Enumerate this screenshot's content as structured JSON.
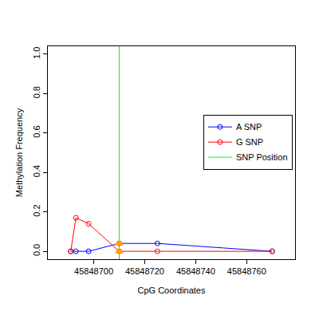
{
  "chart_data": {
    "type": "line",
    "x_label": "CpG Coordinates",
    "y_label": "Methylation Frequency",
    "x": [
      45848691,
      45848693,
      45848698,
      45848710,
      45848725,
      45848770
    ],
    "series": [
      {
        "name": "A SNP",
        "color": "#0000ff",
        "marker": "circle-open",
        "values": [
          0,
          0,
          0,
          0.04,
          0.04,
          0
        ]
      },
      {
        "name": "G SNP",
        "color": "#ff0000",
        "marker": "circle-open",
        "values": [
          0,
          0.17,
          0.14,
          0,
          0,
          0
        ]
      }
    ],
    "snp": {
      "name": "SNP Position",
      "x": 45848710,
      "color": "#00ff00",
      "marker": "triangle-up",
      "marker_color": "#ffa500"
    },
    "xlim": [
      45848682,
      45848779
    ],
    "xticks": [
      45848700,
      45848720,
      45848740,
      45848760
    ],
    "ylim": [
      -0.04,
      1.04
    ],
    "yticks": [
      {
        "value": 0,
        "label": "0.0"
      },
      {
        "value": 0.2,
        "label": "0.2"
      },
      {
        "value": 0.4,
        "label": "0.4"
      },
      {
        "value": 0.6,
        "label": "0.6"
      },
      {
        "value": 0.8,
        "label": "0.8"
      },
      {
        "value": 1,
        "label": "1.0"
      }
    ],
    "grid": false,
    "legend": "right"
  }
}
